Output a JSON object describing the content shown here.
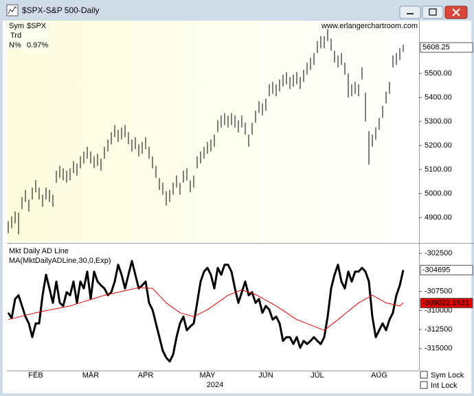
{
  "window": {
    "title": "$SPX-S&P 500-Daily",
    "checkboxes": [
      "Sym Lock",
      "Int Lock"
    ]
  },
  "info": {
    "rows": [
      [
        "Sym",
        "$SPX"
      ],
      [
        "Trd"
      ],
      [
        "N%",
        "0.97%"
      ]
    ]
  },
  "watermark": "www.erlangerchartroom.com",
  "chart_data": [
    {
      "type": "ohlc",
      "x": [
        0,
        1,
        2,
        3,
        4,
        5,
        6,
        7,
        8,
        9,
        10,
        11,
        12,
        13,
        14,
        15,
        16,
        17,
        18,
        19,
        20,
        21,
        22,
        23,
        24,
        25,
        26,
        27,
        28,
        29,
        30,
        31,
        32,
        33,
        34,
        35,
        36,
        37,
        38,
        39,
        40,
        41,
        42,
        43,
        44,
        45,
        46,
        47,
        48,
        49,
        50,
        51,
        52,
        53,
        54,
        55,
        56,
        57,
        58,
        59,
        60,
        61,
        62,
        63,
        64,
        65,
        66,
        67,
        68,
        69,
        70,
        71,
        72,
        73,
        74,
        75,
        76,
        77,
        78,
        79,
        80,
        81,
        82,
        83,
        84,
        85,
        86,
        87,
        88,
        89,
        90,
        91,
        92,
        93,
        94,
        95,
        96,
        97,
        98,
        99,
        100,
        101,
        102,
        103,
        104,
        105,
        106,
        107,
        108,
        109,
        110,
        111,
        112,
        113,
        114,
        115
      ],
      "series": [
        {
          "color": "#000000",
          "high": [
            4885,
            4905,
            4925,
            4920,
            4985,
            5015,
            4975,
            5025,
            5055,
            5025,
            4995,
            5025,
            5015,
            4995,
            5095,
            5115,
            5105,
            5095,
            5105,
            5135,
            5125,
            5155,
            5175,
            5195,
            5175,
            5155,
            5165,
            5145,
            5195,
            5225,
            5255,
            5285,
            5265,
            5275,
            5285,
            5255,
            5225,
            5235,
            5205,
            5215,
            5235,
            5195,
            5155,
            5115,
            5065,
            5045,
            5010,
            5015,
            5045,
            5075,
            5045,
            5095,
            5105,
            5055,
            5075,
            5155,
            5175,
            5195,
            5215,
            5225,
            5245,
            5305,
            5325,
            5335,
            5325,
            5335,
            5325,
            5305,
            5325,
            5295,
            5245,
            5295,
            5345,
            5385,
            5375,
            5395,
            5455,
            5465,
            5455,
            5475,
            5495,
            5505,
            5485,
            5495,
            5505,
            5485,
            5515,
            5545,
            5565,
            5585,
            5635,
            5655,
            5655,
            5685,
            5645,
            5595,
            5575,
            5585,
            5545,
            5500,
            5455,
            5465,
            5455,
            5525,
            5420,
            5260,
            5245,
            5275,
            5315,
            5365,
            5425,
            5465,
            5575,
            5585,
            5605,
            5620
          ],
          "low": [
            4835,
            4855,
            4875,
            4830,
            4935,
            4965,
            4925,
            4975,
            5005,
            4975,
            4945,
            4975,
            4965,
            4945,
            5045,
            5065,
            5055,
            5045,
            5055,
            5085,
            5075,
            5105,
            5125,
            5145,
            5125,
            5105,
            5115,
            5095,
            5145,
            5175,
            5205,
            5235,
            5215,
            5225,
            5235,
            5205,
            5175,
            5185,
            5155,
            5165,
            5185,
            5145,
            5105,
            5065,
            5015,
            4995,
            4950,
            4965,
            4995,
            5025,
            4995,
            5045,
            5055,
            5005,
            5025,
            5105,
            5125,
            5145,
            5165,
            5175,
            5195,
            5255,
            5275,
            5285,
            5275,
            5285,
            5275,
            5255,
            5275,
            5245,
            5195,
            5245,
            5295,
            5335,
            5325,
            5345,
            5405,
            5415,
            5405,
            5425,
            5445,
            5455,
            5435,
            5445,
            5455,
            5435,
            5465,
            5495,
            5515,
            5535,
            5585,
            5605,
            5605,
            5635,
            5595,
            5545,
            5525,
            5535,
            5495,
            5400,
            5405,
            5415,
            5405,
            5475,
            5300,
            5120,
            5195,
            5225,
            5265,
            5315,
            5375,
            5415,
            5525,
            5535,
            5555,
            5590
          ],
          "last_value": 5608.25
        }
      ],
      "xlim": [
        -0.4,
        119.6
      ],
      "ylim": [
        4800,
        5720
      ],
      "yticks": [
        {
          "value": 4900,
          "label": "4900.00"
        },
        {
          "value": 5000,
          "label": "5000.00"
        },
        {
          "value": 5100,
          "label": "5100.00"
        },
        {
          "value": 5200,
          "label": "5200.00"
        },
        {
          "value": 5300,
          "label": "5300.00"
        },
        {
          "value": 5400,
          "label": "5400.00"
        },
        {
          "value": 5500,
          "label": "5500.00"
        }
      ]
    },
    {
      "type": "line",
      "x": [
        0,
        1,
        2,
        3,
        4,
        5,
        6,
        7,
        8,
        9,
        10,
        11,
        12,
        13,
        14,
        15,
        16,
        17,
        18,
        19,
        20,
        21,
        22,
        23,
        24,
        25,
        26,
        27,
        28,
        29,
        30,
        31,
        32,
        33,
        34,
        35,
        36,
        37,
        38,
        39,
        40,
        41,
        42,
        43,
        44,
        45,
        46,
        47,
        48,
        49,
        50,
        51,
        52,
        53,
        54,
        55,
        56,
        57,
        58,
        59,
        60,
        61,
        62,
        63,
        64,
        65,
        66,
        67,
        68,
        69,
        70,
        71,
        72,
        73,
        74,
        75,
        76,
        77,
        78,
        79,
        80,
        81,
        82,
        83,
        84,
        85,
        86,
        87,
        88,
        89,
        90,
        91,
        92,
        93,
        94,
        95,
        96,
        97,
        98,
        99,
        100,
        101,
        102,
        103,
        104,
        105,
        106,
        107,
        108,
        109,
        110,
        111,
        112,
        113,
        114,
        115
      ],
      "series": [
        {
          "name": "Mkt Daily AD Line",
          "color": "#000000",
          "values": [
            -310300,
            -311000,
            -308500,
            -308000,
            -309400,
            -310800,
            -311700,
            -313500,
            -311700,
            -311700,
            -308000,
            -305300,
            -307100,
            -309000,
            -306200,
            -309000,
            -309400,
            -307600,
            -308000,
            -306200,
            -309000,
            -306200,
            -307100,
            -304900,
            -308500,
            -304900,
            -306200,
            -306700,
            -307100,
            -308000,
            -307600,
            -306200,
            -304000,
            -305300,
            -307100,
            -305300,
            -303500,
            -305300,
            -307100,
            -306700,
            -306200,
            -309000,
            -309900,
            -311700,
            -313500,
            -315300,
            -316200,
            -316700,
            -315800,
            -313500,
            -311700,
            -310800,
            -312600,
            -312100,
            -311700,
            -309000,
            -306200,
            -304900,
            -304400,
            -305300,
            -307100,
            -304400,
            -305300,
            -304000,
            -304000,
            -304900,
            -307100,
            -309000,
            -307600,
            -306200,
            -308000,
            -307600,
            -309000,
            -308500,
            -310300,
            -309400,
            -309900,
            -311200,
            -310800,
            -311700,
            -314000,
            -313500,
            -313500,
            -314400,
            -313500,
            -314900,
            -314000,
            -314400,
            -314000,
            -313500,
            -314000,
            -314400,
            -313500,
            -310800,
            -307100,
            -305300,
            -304000,
            -306200,
            -307100,
            -304900,
            -306200,
            -304900,
            -304900,
            -304400,
            -304900,
            -306200,
            -310800,
            -313500,
            -312600,
            -311700,
            -312600,
            -311200,
            -310300,
            -308000,
            -306700,
            -304695
          ]
        },
        {
          "name": "MA(MktDailyADLine,30,0,Exp)",
          "color": "#e00000",
          "x": [
            0,
            8,
            18,
            28,
            38,
            42,
            46,
            50,
            54,
            58,
            64,
            68,
            72,
            78,
            84,
            92,
            96,
            102,
            106,
            110,
            114,
            115
          ],
          "values": [
            -311200,
            -310300,
            -309400,
            -308000,
            -307000,
            -307100,
            -309000,
            -310300,
            -310800,
            -309900,
            -308000,
            -307300,
            -307900,
            -309400,
            -311200,
            -312600,
            -311200,
            -309000,
            -308000,
            -309000,
            -309400,
            -309022.1631
          ]
        }
      ],
      "xlim": [
        -0.4,
        119.6
      ],
      "ylim": [
        -317900,
        -301400
      ],
      "yticks": [
        -302500,
        -307500,
        -310000,
        -312500,
        -315000
      ],
      "xticks": [
        {
          "value": 8,
          "label": "FEB"
        },
        {
          "value": 24,
          "label": "MAR"
        },
        {
          "value": 40,
          "label": "APR"
        },
        {
          "value": 58,
          "label": "MAY"
        },
        {
          "value": 75,
          "label": "JUN"
        },
        {
          "value": 90,
          "label": "JUL"
        },
        {
          "value": 108,
          "label": "AUG"
        }
      ],
      "xlabel": "2024"
    }
  ]
}
